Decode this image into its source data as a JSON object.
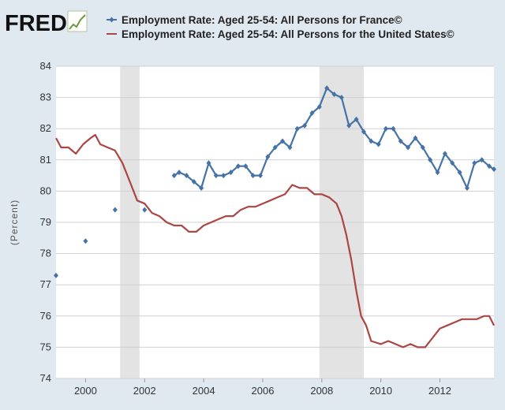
{
  "logo": {
    "text": "FRED"
  },
  "chart_data": {
    "type": "line",
    "title": "",
    "xlabel": "",
    "ylabel": "(Percent)",
    "xlim": [
      1999.0,
      2013.83
    ],
    "ylim": [
      74,
      84
    ],
    "yticks": [
      "74",
      "75",
      "76",
      "77",
      "78",
      "79",
      "80",
      "81",
      "82",
      "83",
      "84"
    ],
    "xticks": [
      "2000",
      "2002",
      "2004",
      "2006",
      "2008",
      "2010",
      "2012"
    ],
    "grid": true,
    "legend_position": "top",
    "recessions": [
      [
        2001.17,
        2001.83
      ],
      [
        2007.92,
        2009.42
      ]
    ],
    "series": [
      {
        "name": "Employment Rate: Aged 25-54: All Persons for France©",
        "color": "#4572a7",
        "marker": "diamond",
        "x": [
          1999.0,
          2000.0,
          2001.0,
          2002.0,
          2003.0,
          2003.17,
          2003.42,
          2003.67,
          2003.92,
          2004.17,
          2004.42,
          2004.67,
          2004.92,
          2005.17,
          2005.42,
          2005.67,
          2005.92,
          2006.17,
          2006.42,
          2006.67,
          2006.92,
          2007.17,
          2007.42,
          2007.67,
          2007.92,
          2008.17,
          2008.42,
          2008.67,
          2008.92,
          2009.17,
          2009.42,
          2009.67,
          2009.92,
          2010.17,
          2010.42,
          2010.67,
          2010.92,
          2011.17,
          2011.42,
          2011.67,
          2011.92,
          2012.17,
          2012.42,
          2012.67,
          2012.92,
          2013.17,
          2013.42,
          2013.67,
          2013.83
        ],
        "values": [
          77.3,
          78.4,
          79.4,
          79.4,
          80.5,
          80.6,
          80.5,
          80.3,
          80.1,
          80.9,
          80.5,
          80.5,
          80.6,
          80.8,
          80.8,
          80.5,
          80.5,
          81.1,
          81.4,
          81.6,
          81.4,
          82.0,
          82.1,
          82.5,
          82.7,
          83.3,
          83.1,
          83.0,
          82.1,
          82.3,
          81.9,
          81.6,
          81.5,
          82.0,
          82.0,
          81.6,
          81.4,
          81.7,
          81.4,
          81.0,
          80.6,
          81.2,
          80.9,
          80.6,
          80.1,
          80.9,
          81.0,
          80.8,
          80.7
        ]
      },
      {
        "name": "Employment Rate: Aged 25-54: All Persons for the United States©",
        "color": "#aa4643",
        "marker": "none",
        "x": [
          1999.0,
          1999.17,
          1999.42,
          1999.67,
          1999.92,
          2000.17,
          2000.33,
          2000.5,
          2000.75,
          2001.0,
          2001.25,
          2001.5,
          2001.75,
          2002.0,
          2002.25,
          2002.5,
          2002.75,
          2003.0,
          2003.25,
          2003.5,
          2003.75,
          2004.0,
          2004.25,
          2004.5,
          2004.75,
          2005.0,
          2005.25,
          2005.5,
          2005.75,
          2006.0,
          2006.25,
          2006.5,
          2006.75,
          2007.0,
          2007.25,
          2007.5,
          2007.75,
          2008.0,
          2008.25,
          2008.5,
          2008.67,
          2008.83,
          2009.0,
          2009.17,
          2009.33,
          2009.5,
          2009.67,
          2010.0,
          2010.25,
          2010.5,
          2010.75,
          2011.0,
          2011.25,
          2011.5,
          2011.75,
          2012.0,
          2012.25,
          2012.5,
          2012.75,
          2013.0,
          2013.25,
          2013.5,
          2013.67,
          2013.83
        ],
        "values": [
          81.7,
          81.4,
          81.4,
          81.2,
          81.5,
          81.7,
          81.8,
          81.5,
          81.4,
          81.3,
          80.9,
          80.3,
          79.7,
          79.6,
          79.3,
          79.2,
          79.0,
          78.9,
          78.9,
          78.7,
          78.7,
          78.9,
          79.0,
          79.1,
          79.2,
          79.2,
          79.4,
          79.5,
          79.5,
          79.6,
          79.7,
          79.8,
          79.9,
          80.2,
          80.1,
          80.1,
          79.9,
          79.9,
          79.8,
          79.6,
          79.2,
          78.6,
          77.8,
          76.8,
          76.0,
          75.7,
          75.2,
          75.1,
          75.2,
          75.1,
          75.0,
          75.1,
          75.0,
          75.0,
          75.3,
          75.6,
          75.7,
          75.8,
          75.9,
          75.9,
          75.9,
          76.0,
          76.0,
          75.7
        ]
      }
    ]
  }
}
